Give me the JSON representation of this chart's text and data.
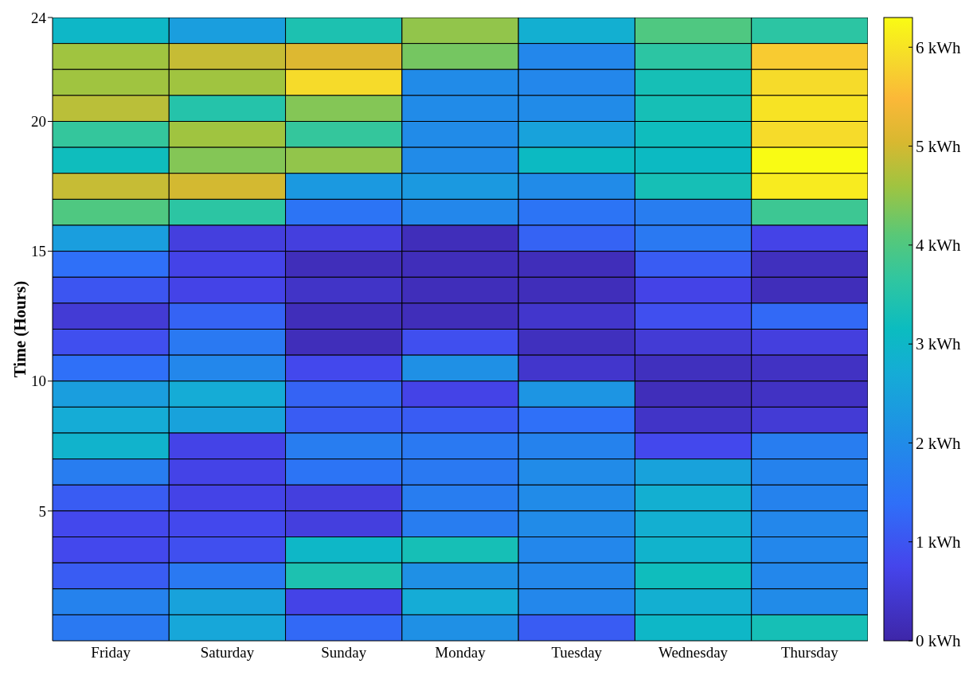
{
  "chart_data": {
    "type": "heatmap",
    "ylabel": "Time (Hours)",
    "categories": [
      "Friday",
      "Saturday",
      "Sunday",
      "Monday",
      "Tuesday",
      "Wednesday",
      "Thursday"
    ],
    "ylim": [
      0,
      24
    ],
    "yticks": [
      5,
      10,
      15,
      20,
      24
    ],
    "clim": [
      0,
      6.3
    ],
    "cticks": [
      {
        "value": 0,
        "label": "0 kWh"
      },
      {
        "value": 1,
        "label": "1 kWh"
      },
      {
        "value": 2,
        "label": "2 kWh"
      },
      {
        "value": 3,
        "label": "3 kWh"
      },
      {
        "value": 4,
        "label": "4 kWh"
      },
      {
        "value": 5,
        "label": "5 kWh"
      },
      {
        "value": 6,
        "label": "6 kWh"
      }
    ],
    "cells": [
      [
        3.0,
        2.4,
        3.4,
        4.5,
        2.8,
        4.0,
        3.6
      ],
      [
        4.6,
        4.9,
        5.1,
        4.3,
        1.9,
        3.6,
        5.7
      ],
      [
        4.6,
        4.6,
        5.9,
        2.0,
        1.9,
        3.3,
        5.9
      ],
      [
        4.8,
        3.5,
        4.4,
        2.0,
        2.0,
        3.3,
        6.0
      ],
      [
        3.7,
        4.6,
        3.7,
        2.0,
        2.5,
        3.2,
        5.9
      ],
      [
        3.2,
        4.4,
        4.5,
        2.0,
        3.1,
        3.1,
        6.3
      ],
      [
        4.9,
        5.0,
        2.3,
        2.3,
        2.0,
        3.3,
        6.1
      ],
      [
        4.0,
        3.6,
        1.5,
        1.9,
        1.5,
        1.7,
        3.8
      ],
      [
        2.4,
        0.6,
        0.6,
        0.2,
        1.2,
        1.6,
        0.7
      ],
      [
        1.4,
        0.7,
        0.2,
        0.2,
        0.2,
        1.1,
        0.25
      ],
      [
        1.0,
        0.7,
        0.35,
        0.2,
        0.2,
        0.7,
        0.2
      ],
      [
        0.5,
        1.2,
        0.2,
        0.2,
        0.4,
        0.9,
        1.3
      ],
      [
        0.9,
        1.6,
        0.2,
        0.9,
        0.25,
        0.5,
        0.6
      ],
      [
        1.4,
        1.9,
        0.8,
        2.1,
        0.4,
        0.25,
        0.3
      ],
      [
        2.4,
        2.7,
        1.2,
        0.7,
        2.2,
        0.2,
        0.3
      ],
      [
        2.7,
        2.5,
        1.1,
        1.1,
        1.4,
        0.35,
        0.5
      ],
      [
        2.9,
        0.7,
        1.7,
        1.6,
        1.8,
        0.8,
        1.7
      ],
      [
        1.7,
        0.7,
        1.5,
        1.6,
        2.0,
        2.5,
        1.8
      ],
      [
        1.1,
        0.7,
        0.6,
        1.7,
        2.0,
        2.8,
        1.8
      ],
      [
        0.8,
        0.8,
        0.6,
        1.7,
        2.0,
        2.8,
        1.9
      ],
      [
        0.8,
        0.9,
        3.0,
        3.3,
        1.9,
        2.9,
        1.9
      ],
      [
        1.1,
        1.6,
        3.4,
        2.1,
        1.9,
        3.2,
        1.9
      ],
      [
        1.8,
        2.5,
        0.7,
        2.7,
        1.9,
        2.8,
        2.0
      ],
      [
        1.6,
        2.6,
        1.3,
        2.1,
        1.1,
        3.0,
        3.3
      ]
    ]
  }
}
